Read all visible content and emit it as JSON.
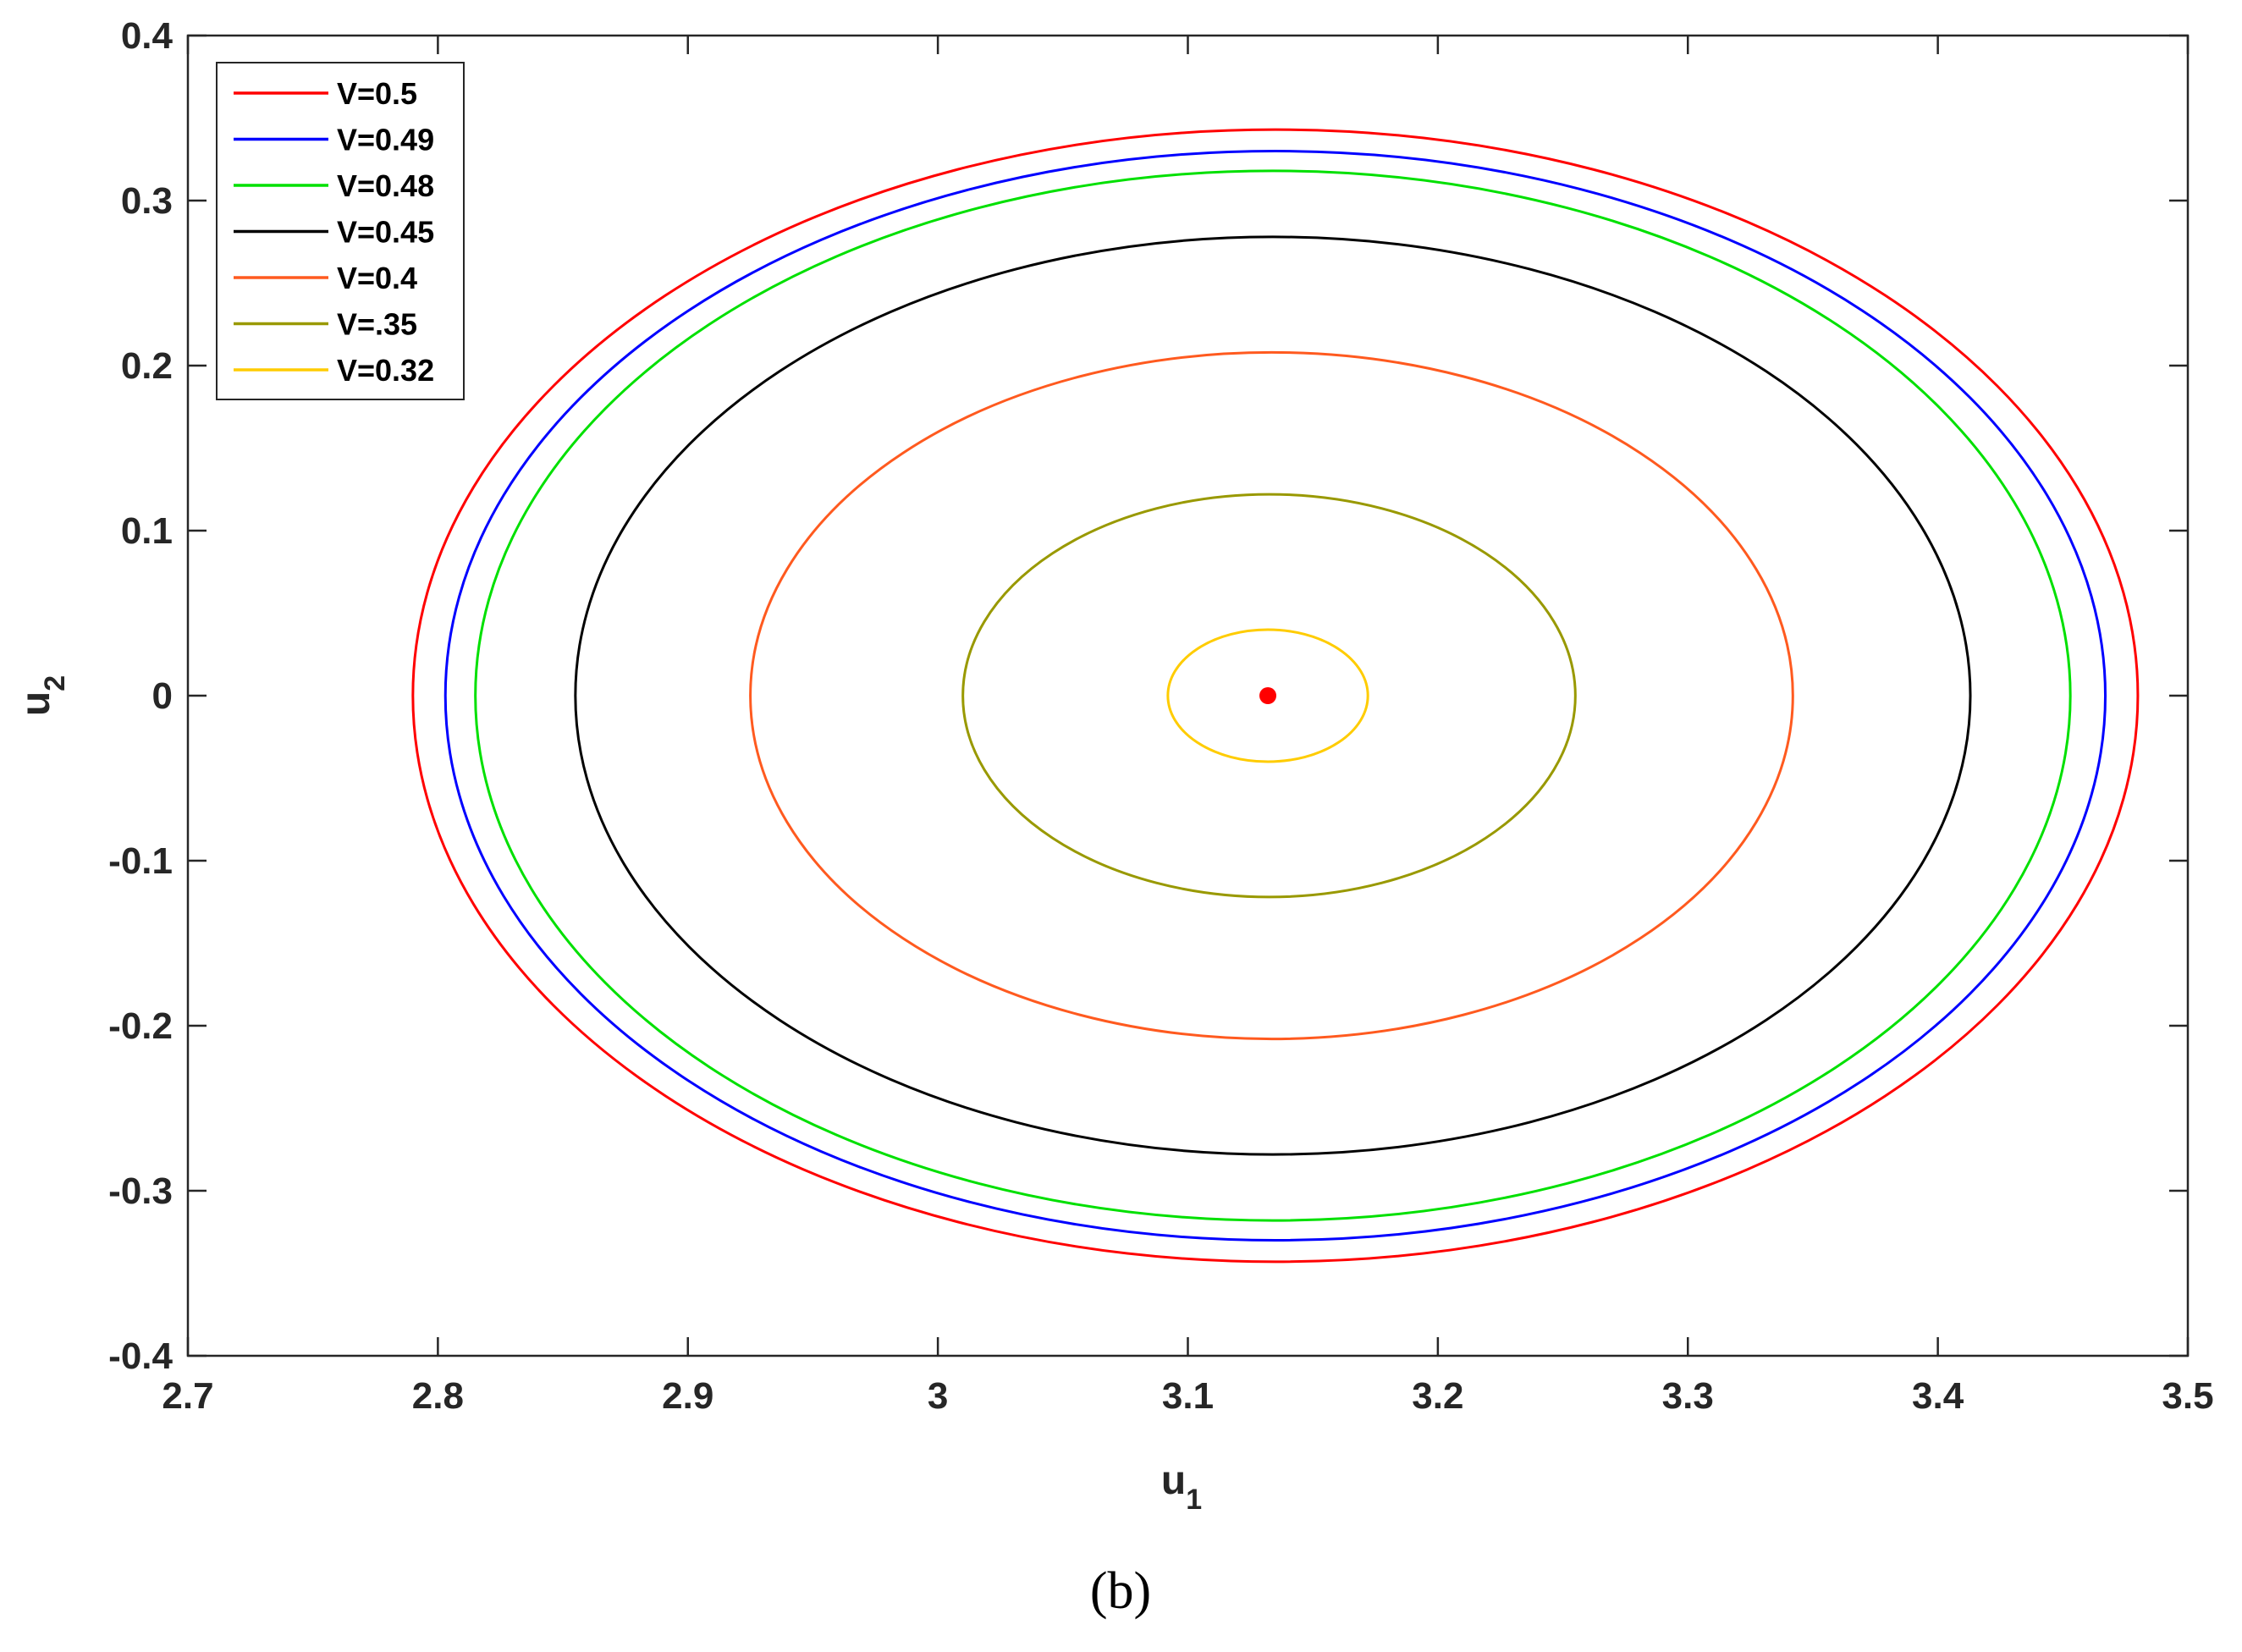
{
  "chart_data": {
    "type": "line",
    "title": "",
    "xlabel": "u",
    "xlabel_subscript": "1",
    "ylabel": "u",
    "ylabel_subscript": "2",
    "xlim": [
      2.7,
      3.5
    ],
    "ylim": [
      -0.4,
      0.4
    ],
    "xticks": [
      2.7,
      2.8,
      2.9,
      3.0,
      3.1,
      3.2,
      3.3,
      3.4,
      3.5
    ],
    "xtick_labels": [
      "2.7",
      "2.8",
      "2.9",
      "3",
      "3.1",
      "3.2",
      "3.3",
      "3.4",
      "3.5"
    ],
    "yticks": [
      0.4,
      0.3,
      0.2,
      0.1,
      0,
      -0.1,
      -0.2,
      -0.3,
      -0.4
    ],
    "ytick_labels": [
      "0.4",
      "0.3",
      "0.2",
      "0.1",
      "0",
      "-0.1",
      "-0.2",
      "-0.3",
      "-0.4"
    ],
    "grid": false,
    "legend_position": "top-left",
    "series": [
      {
        "name": "V=0.5",
        "color": "#ff0000",
        "x_min": 2.79,
        "x_max": 3.48,
        "y_max": 0.343
      },
      {
        "name": "V=0.49",
        "color": "#0000ff",
        "x_min": 2.803,
        "x_max": 3.467,
        "y_max": 0.33
      },
      {
        "name": "V=0.48",
        "color": "#00e000",
        "x_min": 2.815,
        "x_max": 3.453,
        "y_max": 0.318
      },
      {
        "name": "V=0.45",
        "color": "#000000",
        "x_min": 2.855,
        "x_max": 3.413,
        "y_max": 0.278
      },
      {
        "name": "V=0.4",
        "color": "#ff5a1f",
        "x_min": 2.925,
        "x_max": 3.342,
        "y_max": 0.208
      },
      {
        "name": "V=.35",
        "color": "#999900",
        "x_min": 3.01,
        "x_max": 3.255,
        "y_max": 0.122
      },
      {
        "name": "V=0.32",
        "color": "#ffcc00",
        "x_min": 3.092,
        "x_max": 3.172,
        "y_max": 0.04
      }
    ],
    "equilibrium_point": {
      "x": 3.132,
      "y": 0.0,
      "color": "#ff0000"
    }
  },
  "caption": "(b)"
}
